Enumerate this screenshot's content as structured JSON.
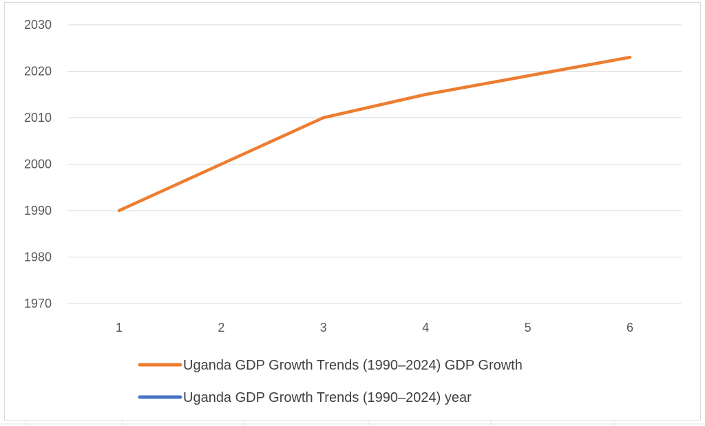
{
  "chart_data": {
    "type": "line",
    "x": [
      1,
      2,
      3,
      4,
      5,
      6
    ],
    "categories": [
      "1",
      "2",
      "3",
      "4",
      "5",
      "6"
    ],
    "ylim": [
      1970,
      2030
    ],
    "yticks": [
      1970,
      1980,
      1990,
      2000,
      2010,
      2020,
      2030
    ],
    "grid": true,
    "legend_position": "bottom",
    "series": [
      {
        "name": "Uganda GDP Growth Trends (1990–2024) GDP Growth",
        "values": [
          1990,
          2000,
          2010,
          2015,
          2019,
          2023
        ],
        "color": "#ED7D31"
      },
      {
        "name": "Uganda GDP Growth Trends (1990–2024) year",
        "values": [
          1990,
          2000,
          2010,
          2015,
          2019,
          2023
        ],
        "color": "#4472C4"
      }
    ]
  }
}
